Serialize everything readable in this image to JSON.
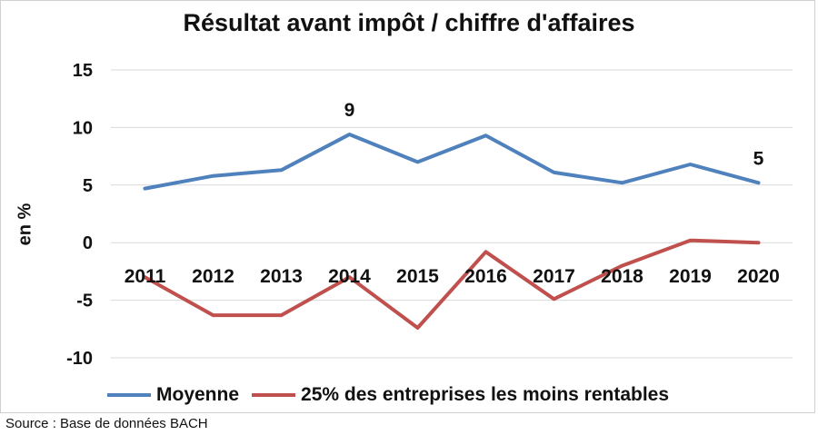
{
  "chart_data": {
    "type": "line",
    "title": "Résultat avant impôt / chiffre d'affaires",
    "ylabel": "en %",
    "xlabel": "",
    "categories": [
      "2011",
      "2012",
      "2013",
      "2014",
      "2015",
      "2016",
      "2017",
      "2018",
      "2019",
      "2020"
    ],
    "ylim": [
      -10,
      15
    ],
    "yticks": [
      "15",
      "10",
      "5",
      "0",
      "-5",
      "-10"
    ],
    "grid": true,
    "legend_position": "bottom",
    "series": [
      {
        "name": "Moyenne",
        "color": "#4F81BD",
        "values": [
          4.7,
          5.8,
          6.3,
          9.4,
          7.0,
          9.3,
          6.1,
          5.2,
          6.8,
          5.2
        ],
        "labels": [
          {
            "index": 3,
            "text": "9"
          },
          {
            "index": 9,
            "text": "5"
          }
        ]
      },
      {
        "name": "25% des entreprises les moins rentables",
        "color": "#C0504D",
        "values": [
          -3.0,
          -6.3,
          -6.3,
          -3.0,
          -7.4,
          -0.8,
          -4.9,
          -2.0,
          0.2,
          0.0
        ]
      }
    ]
  },
  "source": "Source : Base de données BACH"
}
